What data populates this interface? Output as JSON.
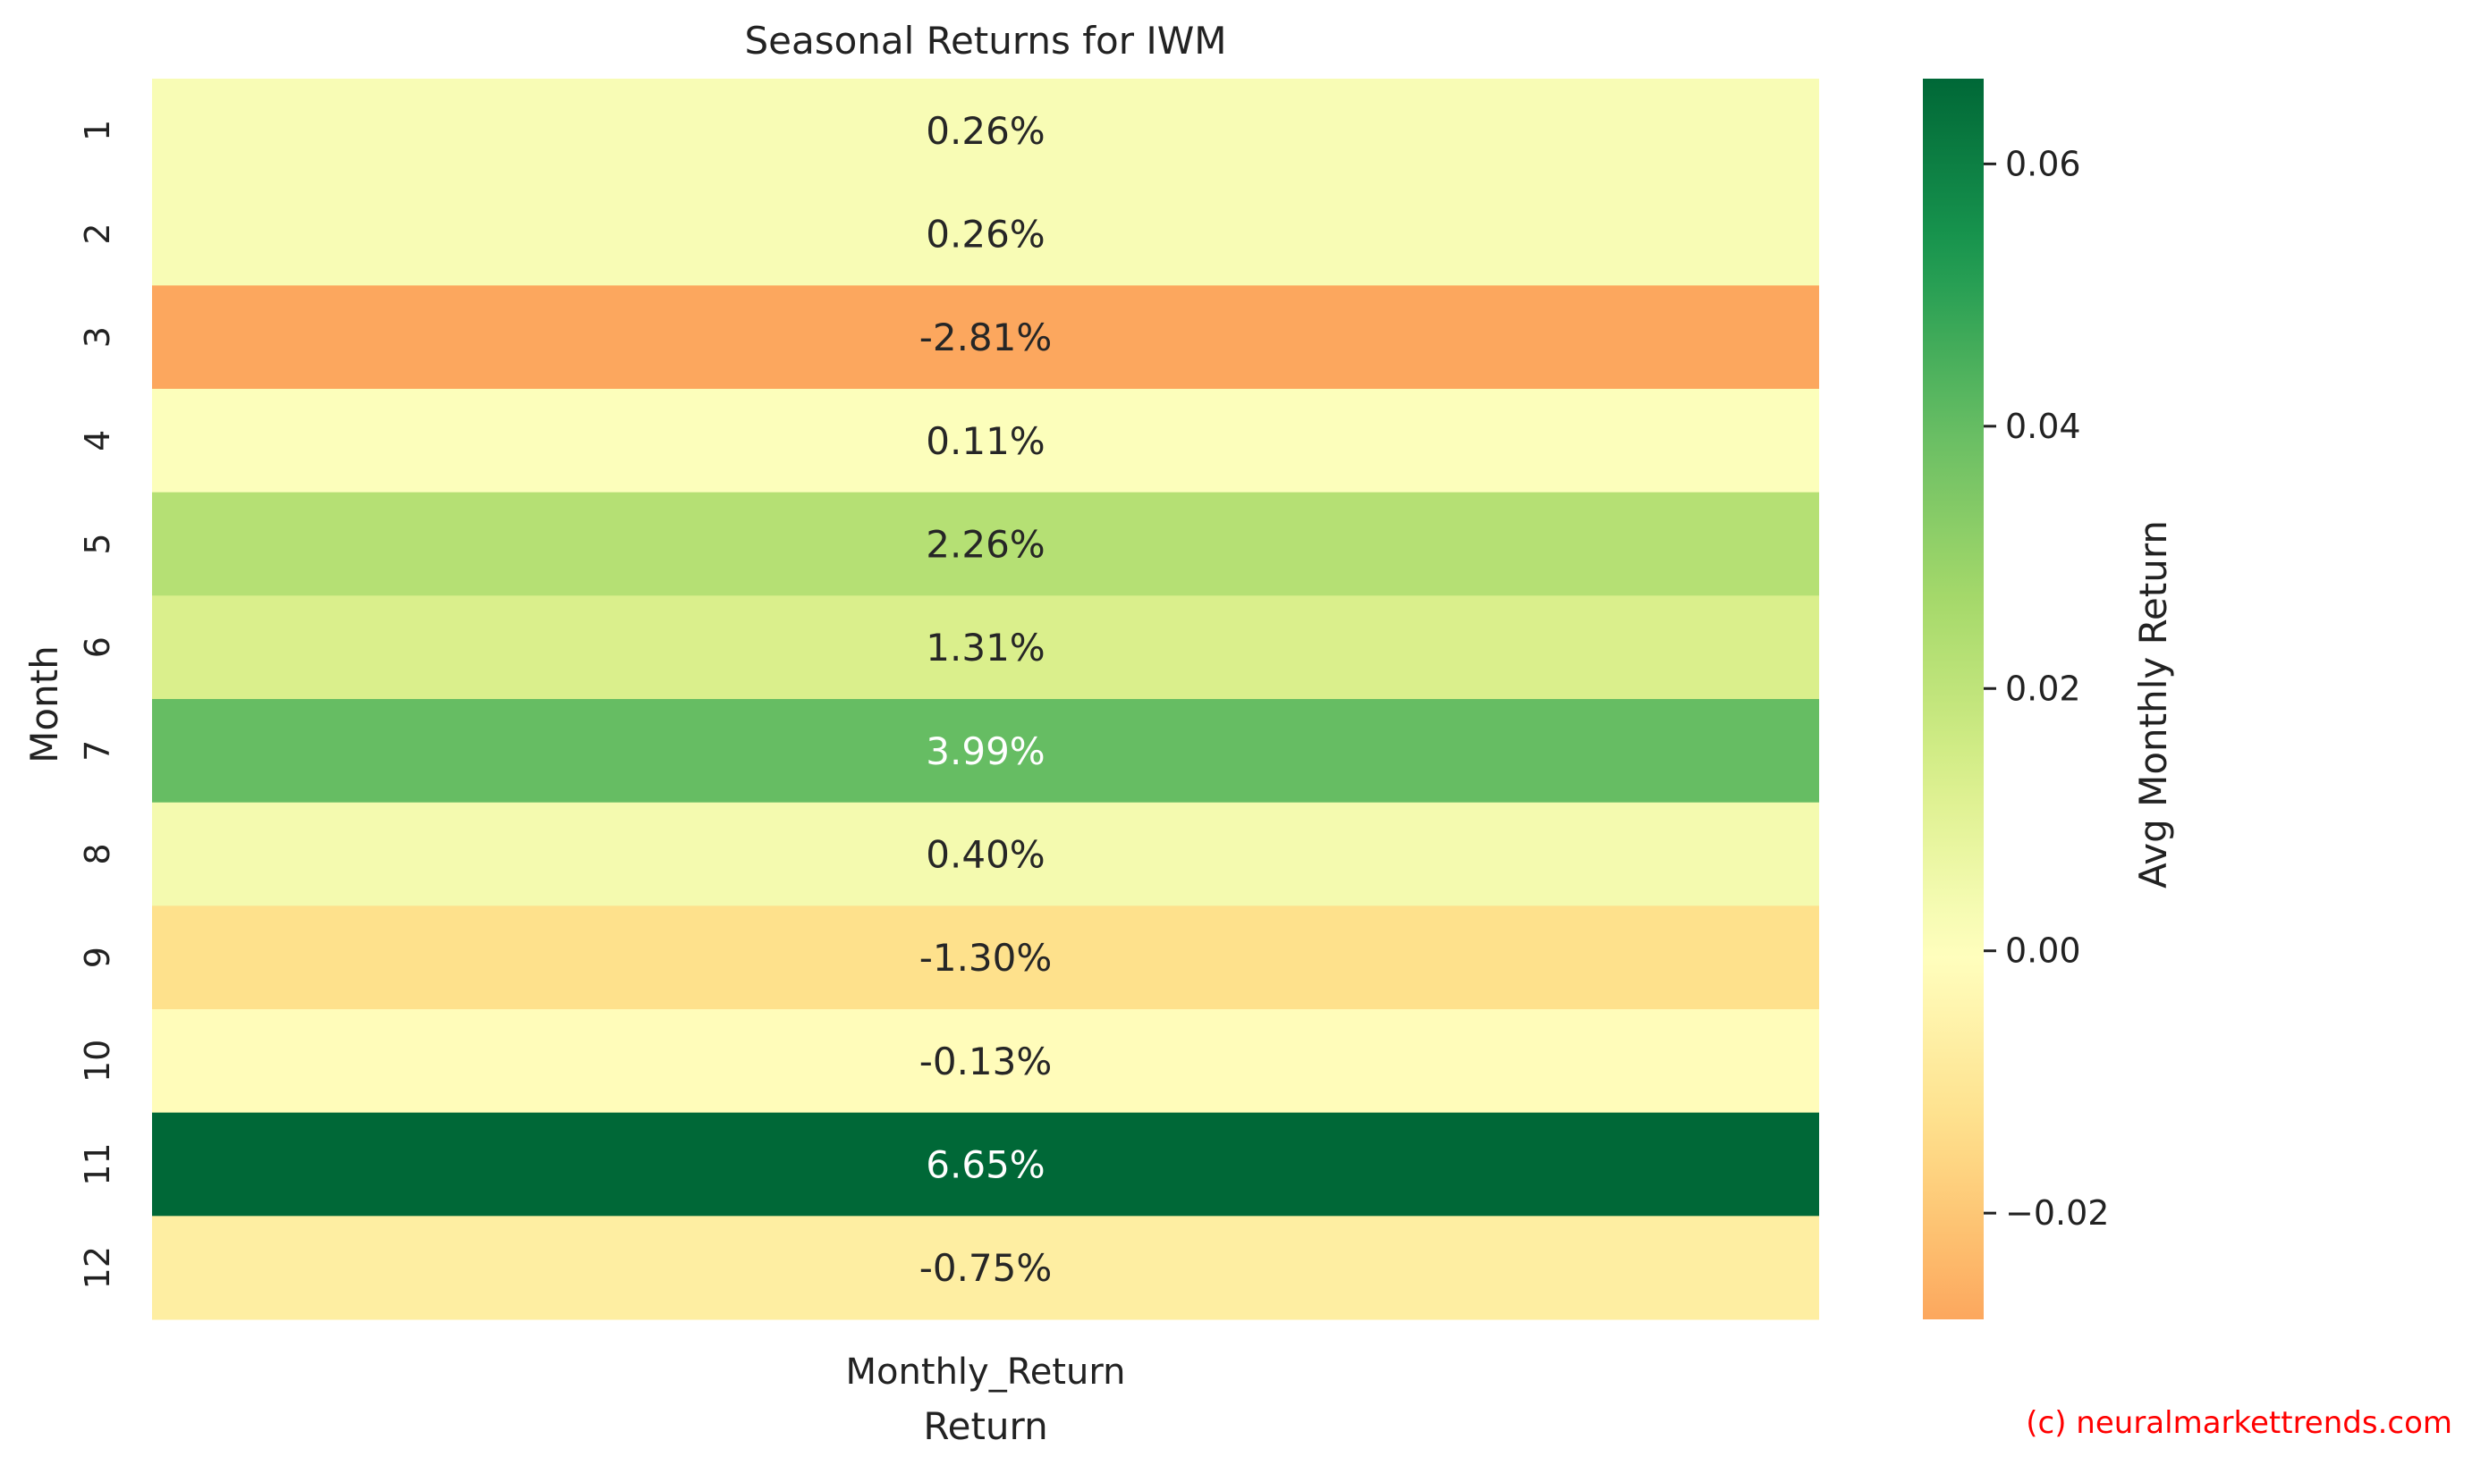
{
  "chart_data": {
    "type": "heatmap",
    "title": "Seasonal Returns for IWM",
    "xlabel": "Return",
    "ylabel": "Month",
    "columns": [
      "Monthly_Return"
    ],
    "rows": [
      "1",
      "2",
      "3",
      "4",
      "5",
      "6",
      "7",
      "8",
      "9",
      "10",
      "11",
      "12"
    ],
    "values": [
      0.0026,
      0.0026,
      -0.0281,
      0.0011,
      0.0226,
      0.0131,
      0.0399,
      0.004,
      -0.013,
      -0.0013,
      0.0665,
      -0.0075
    ],
    "value_labels": [
      "0.26%",
      "0.26%",
      "-2.81%",
      "0.11%",
      "2.26%",
      "1.31%",
      "3.99%",
      "0.40%",
      "-1.30%",
      "-0.13%",
      "6.65%",
      "-0.75%"
    ],
    "colorbar": {
      "label": "Avg Monthly Return",
      "min": -0.0281,
      "max": 0.0665,
      "center": 0,
      "ticks": [
        0.06,
        0.04,
        0.02,
        0.0,
        -0.02
      ],
      "tick_labels": [
        "0.06",
        "0.04",
        "0.02",
        "0.00",
        "−0.02"
      ],
      "colormap": "RdYlGn"
    },
    "grid": false,
    "legend": "colorbar-right"
  },
  "watermark": "(c) neuralmarkettrends.com"
}
